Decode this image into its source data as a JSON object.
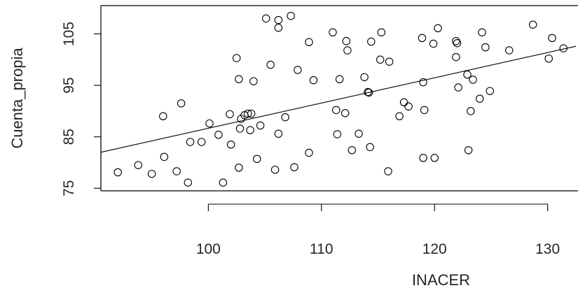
{
  "chart_data": {
    "type": "scatter",
    "xlabel": "INACER",
    "ylabel": "Cuenta_propia",
    "xlim": [
      90.5,
      132.5
    ],
    "ylim": [
      74.5,
      110.5
    ],
    "x_ticks": [
      100,
      110,
      120,
      130
    ],
    "y_ticks": [
      75,
      85,
      95,
      105
    ],
    "grid": false,
    "legend": "none",
    "fit_line": {
      "x": [
        90.5,
        132.5
      ],
      "y": [
        82.0,
        102.6
      ]
    },
    "points": [
      {
        "x": 92.0,
        "y": 78.1
      },
      {
        "x": 93.8,
        "y": 79.5
      },
      {
        "x": 95.0,
        "y": 77.8
      },
      {
        "x": 96.0,
        "y": 89.0
      },
      {
        "x": 96.1,
        "y": 81.1
      },
      {
        "x": 97.2,
        "y": 78.3
      },
      {
        "x": 97.6,
        "y": 91.5
      },
      {
        "x": 98.2,
        "y": 76.1
      },
      {
        "x": 98.4,
        "y": 84.0
      },
      {
        "x": 99.4,
        "y": 84.0
      },
      {
        "x": 100.1,
        "y": 87.6
      },
      {
        "x": 100.9,
        "y": 85.4
      },
      {
        "x": 101.3,
        "y": 76.1
      },
      {
        "x": 101.9,
        "y": 89.4
      },
      {
        "x": 102.0,
        "y": 83.5
      },
      {
        "x": 102.5,
        "y": 100.3
      },
      {
        "x": 102.7,
        "y": 79.0
      },
      {
        "x": 102.7,
        "y": 96.2
      },
      {
        "x": 102.8,
        "y": 86.6
      },
      {
        "x": 102.9,
        "y": 88.5
      },
      {
        "x": 103.2,
        "y": 89.2
      },
      {
        "x": 103.5,
        "y": 89.5
      },
      {
        "x": 103.7,
        "y": 86.3
      },
      {
        "x": 103.8,
        "y": 89.5
      },
      {
        "x": 104.0,
        "y": 95.8
      },
      {
        "x": 104.3,
        "y": 80.7
      },
      {
        "x": 104.6,
        "y": 87.2
      },
      {
        "x": 105.1,
        "y": 108.0
      },
      {
        "x": 105.5,
        "y": 99.0
      },
      {
        "x": 105.9,
        "y": 78.6
      },
      {
        "x": 106.2,
        "y": 107.7
      },
      {
        "x": 106.2,
        "y": 106.2
      },
      {
        "x": 106.2,
        "y": 85.6
      },
      {
        "x": 106.8,
        "y": 88.8
      },
      {
        "x": 107.3,
        "y": 108.5
      },
      {
        "x": 107.6,
        "y": 79.1
      },
      {
        "x": 107.9,
        "y": 98.0
      },
      {
        "x": 108.9,
        "y": 103.4
      },
      {
        "x": 108.9,
        "y": 81.9
      },
      {
        "x": 109.3,
        "y": 96.0
      },
      {
        "x": 111.0,
        "y": 105.3
      },
      {
        "x": 111.3,
        "y": 90.2
      },
      {
        "x": 111.4,
        "y": 85.5
      },
      {
        "x": 111.6,
        "y": 96.2
      },
      {
        "x": 112.1,
        "y": 89.6
      },
      {
        "x": 112.2,
        "y": 103.6
      },
      {
        "x": 112.3,
        "y": 101.8
      },
      {
        "x": 112.7,
        "y": 82.4
      },
      {
        "x": 113.3,
        "y": 85.6
      },
      {
        "x": 113.8,
        "y": 96.6
      },
      {
        "x": 114.1,
        "y": 93.7
      },
      {
        "x": 114.2,
        "y": 93.6
      },
      {
        "x": 114.3,
        "y": 83.0
      },
      {
        "x": 114.4,
        "y": 103.5
      },
      {
        "x": 115.2,
        "y": 100.0
      },
      {
        "x": 115.3,
        "y": 105.3
      },
      {
        "x": 115.9,
        "y": 78.3
      },
      {
        "x": 116.0,
        "y": 99.6
      },
      {
        "x": 116.9,
        "y": 89.0
      },
      {
        "x": 117.3,
        "y": 91.7
      },
      {
        "x": 117.7,
        "y": 90.9
      },
      {
        "x": 118.9,
        "y": 104.2
      },
      {
        "x": 119.0,
        "y": 95.6
      },
      {
        "x": 119.0,
        "y": 80.9
      },
      {
        "x": 119.1,
        "y": 90.2
      },
      {
        "x": 119.9,
        "y": 103.1
      },
      {
        "x": 120.0,
        "y": 80.9
      },
      {
        "x": 120.3,
        "y": 106.1
      },
      {
        "x": 121.9,
        "y": 103.6
      },
      {
        "x": 121.9,
        "y": 100.5
      },
      {
        "x": 122.0,
        "y": 103.2
      },
      {
        "x": 122.1,
        "y": 94.6
      },
      {
        "x": 122.9,
        "y": 97.1
      },
      {
        "x": 123.0,
        "y": 82.4
      },
      {
        "x": 123.2,
        "y": 90.0
      },
      {
        "x": 123.4,
        "y": 96.1
      },
      {
        "x": 124.0,
        "y": 92.4
      },
      {
        "x": 124.2,
        "y": 105.3
      },
      {
        "x": 124.5,
        "y": 102.4
      },
      {
        "x": 124.9,
        "y": 93.9
      },
      {
        "x": 126.6,
        "y": 101.8
      },
      {
        "x": 128.7,
        "y": 106.8
      },
      {
        "x": 130.1,
        "y": 100.2
      },
      {
        "x": 130.4,
        "y": 104.2
      },
      {
        "x": 131.4,
        "y": 102.2
      }
    ]
  }
}
